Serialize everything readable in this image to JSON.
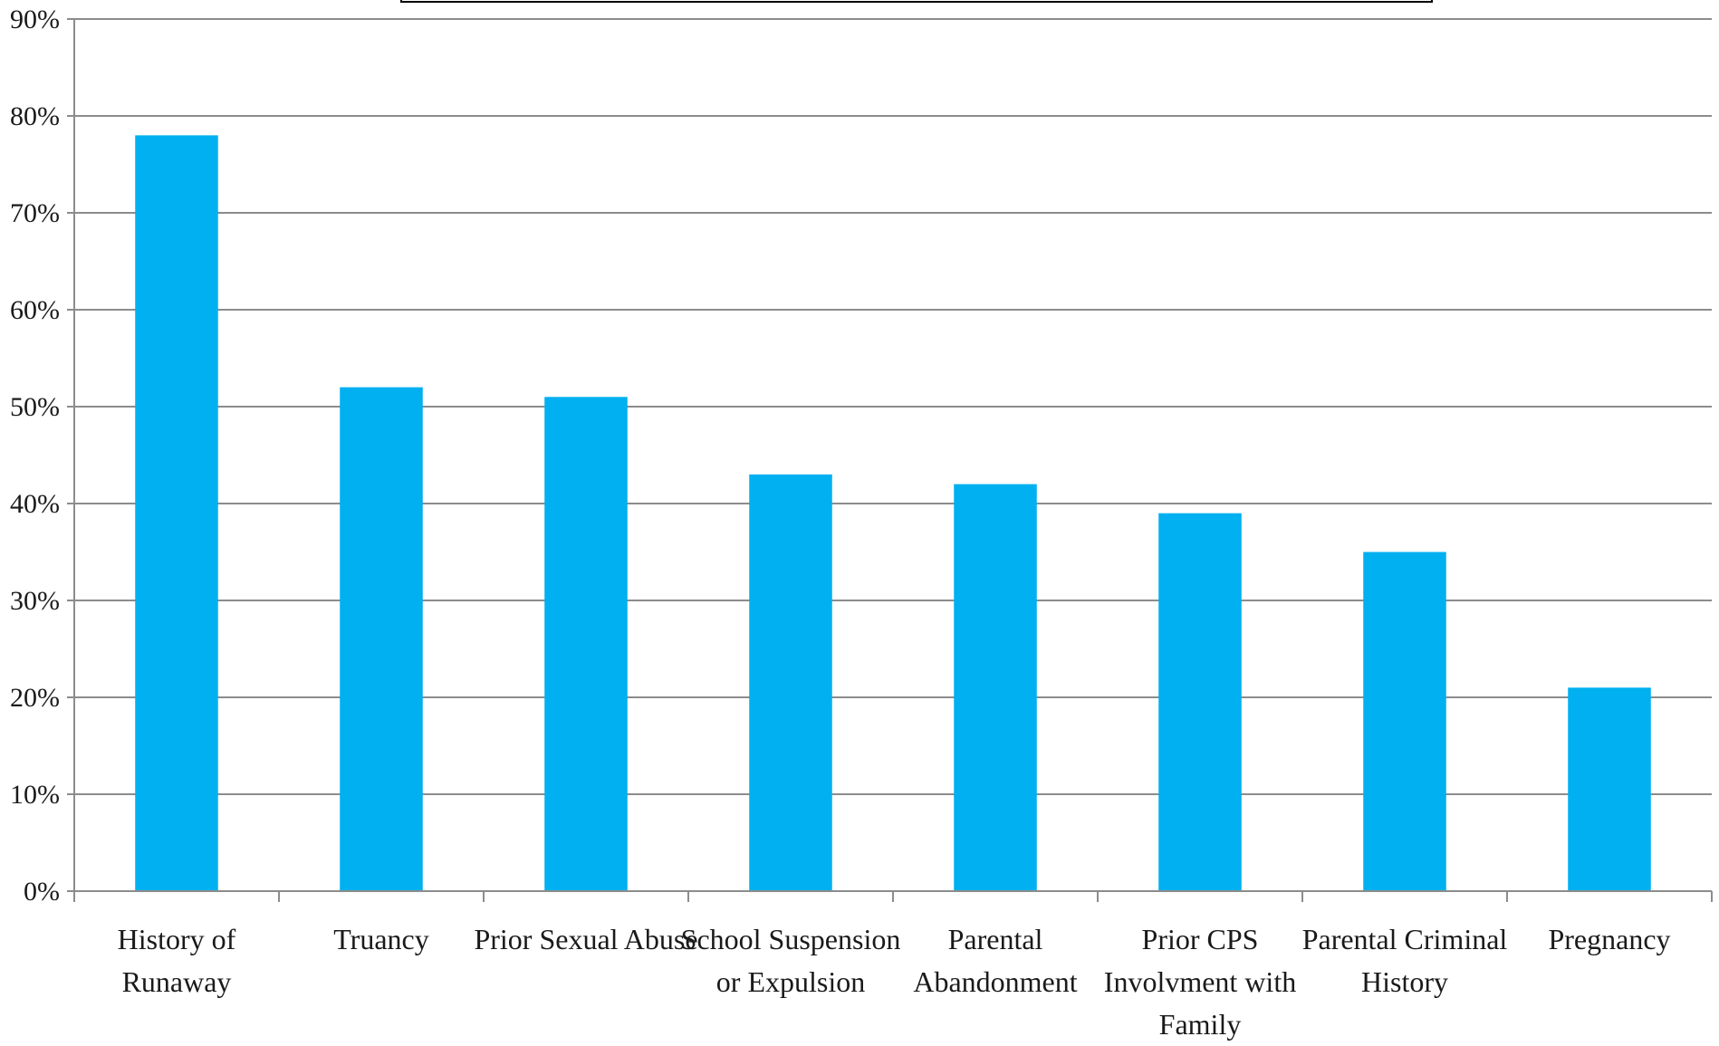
{
  "chart_data": {
    "type": "bar",
    "title": "",
    "xlabel": "",
    "ylabel": "",
    "ylim": [
      0,
      0.9
    ],
    "y_tick_step": 0.1,
    "y_tick_format": "percent",
    "grid": true,
    "legend": "none",
    "categories": [
      [
        "History of",
        "Runaway"
      ],
      [
        "Truancy"
      ],
      [
        "Prior Sexual Abuse"
      ],
      [
        "School Suspension",
        "or Expulsion"
      ],
      [
        "Parental",
        "Abandonment"
      ],
      [
        "Prior CPS",
        "Involvment with",
        "Family"
      ],
      [
        "Parental Criminal",
        "History"
      ],
      [
        "Pregnancy"
      ]
    ],
    "values": [
      0.78,
      0.52,
      0.51,
      0.43,
      0.42,
      0.39,
      0.35,
      0.21
    ],
    "bar_color": "#00b0f0"
  }
}
